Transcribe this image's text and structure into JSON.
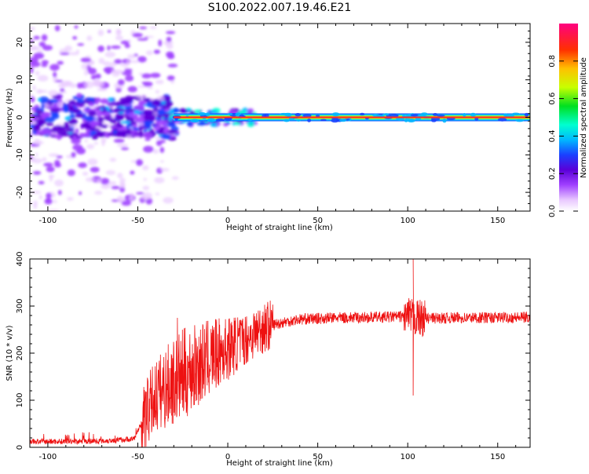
{
  "title": "S100.2022.007.19.46.E21",
  "colors": {
    "snr_line": "#ee1111",
    "colormap": [
      "#ffffff",
      "#e8c8ff",
      "#a040ff",
      "#5a00d8",
      "#1a40ff",
      "#00b8ff",
      "#00ffd0",
      "#00e020",
      "#c8ff00",
      "#ffc000",
      "#ff3000",
      "#ff0080"
    ]
  },
  "chart_data": [
    {
      "id": "spectrogram",
      "type": "heatmap",
      "xlabel": "Height of straight line (km)",
      "ylabel": "Frequency (Hz)",
      "xlim": [
        -110,
        168
      ],
      "ylim": [
        -25,
        25
      ],
      "xticks": [
        -100,
        -50,
        0,
        50,
        100,
        150
      ],
      "yticks": [
        -20,
        -10,
        0,
        10,
        20
      ],
      "colorbar": {
        "label": "Normalized spectral amplitude",
        "range": [
          0,
          1
        ],
        "ticks": [
          "0.0",
          "0.2",
          "0.4",
          "0.6",
          "0.8"
        ]
      },
      "description_values": {
        "noisy_region_x": [
          -110,
          -35
        ],
        "transition_x": [
          -35,
          15
        ],
        "signal_line_frequency_hz": 0,
        "peak_amplitude": 1.0
      }
    },
    {
      "id": "snr",
      "type": "line",
      "xlabel": "Height of straight line (km)",
      "ylabel": "SNR (10 * v/v)",
      "xlim": [
        -110,
        168
      ],
      "ylim": [
        0,
        400
      ],
      "xticks": [
        -100,
        -50,
        0,
        50,
        100,
        150
      ],
      "yticks": [
        0,
        100,
        200,
        300,
        400
      ],
      "envelope": {
        "x": [
          -110,
          -75,
          -62,
          -52,
          -47,
          -40,
          -30,
          -20,
          -10,
          0,
          10,
          20,
          30,
          40,
          60,
          80,
          100,
          103,
          110,
          130,
          168
        ],
        "y": [
          12,
          13,
          15,
          18,
          60,
          110,
          140,
          165,
          190,
          210,
          230,
          255,
          265,
          272,
          275,
          276,
          278,
          275,
          274,
          275,
          276
        ]
      },
      "spikes": [
        {
          "x": -28,
          "y": 275
        },
        {
          "x": 103,
          "y": 400
        },
        {
          "x": 103,
          "y": 110
        }
      ]
    }
  ]
}
